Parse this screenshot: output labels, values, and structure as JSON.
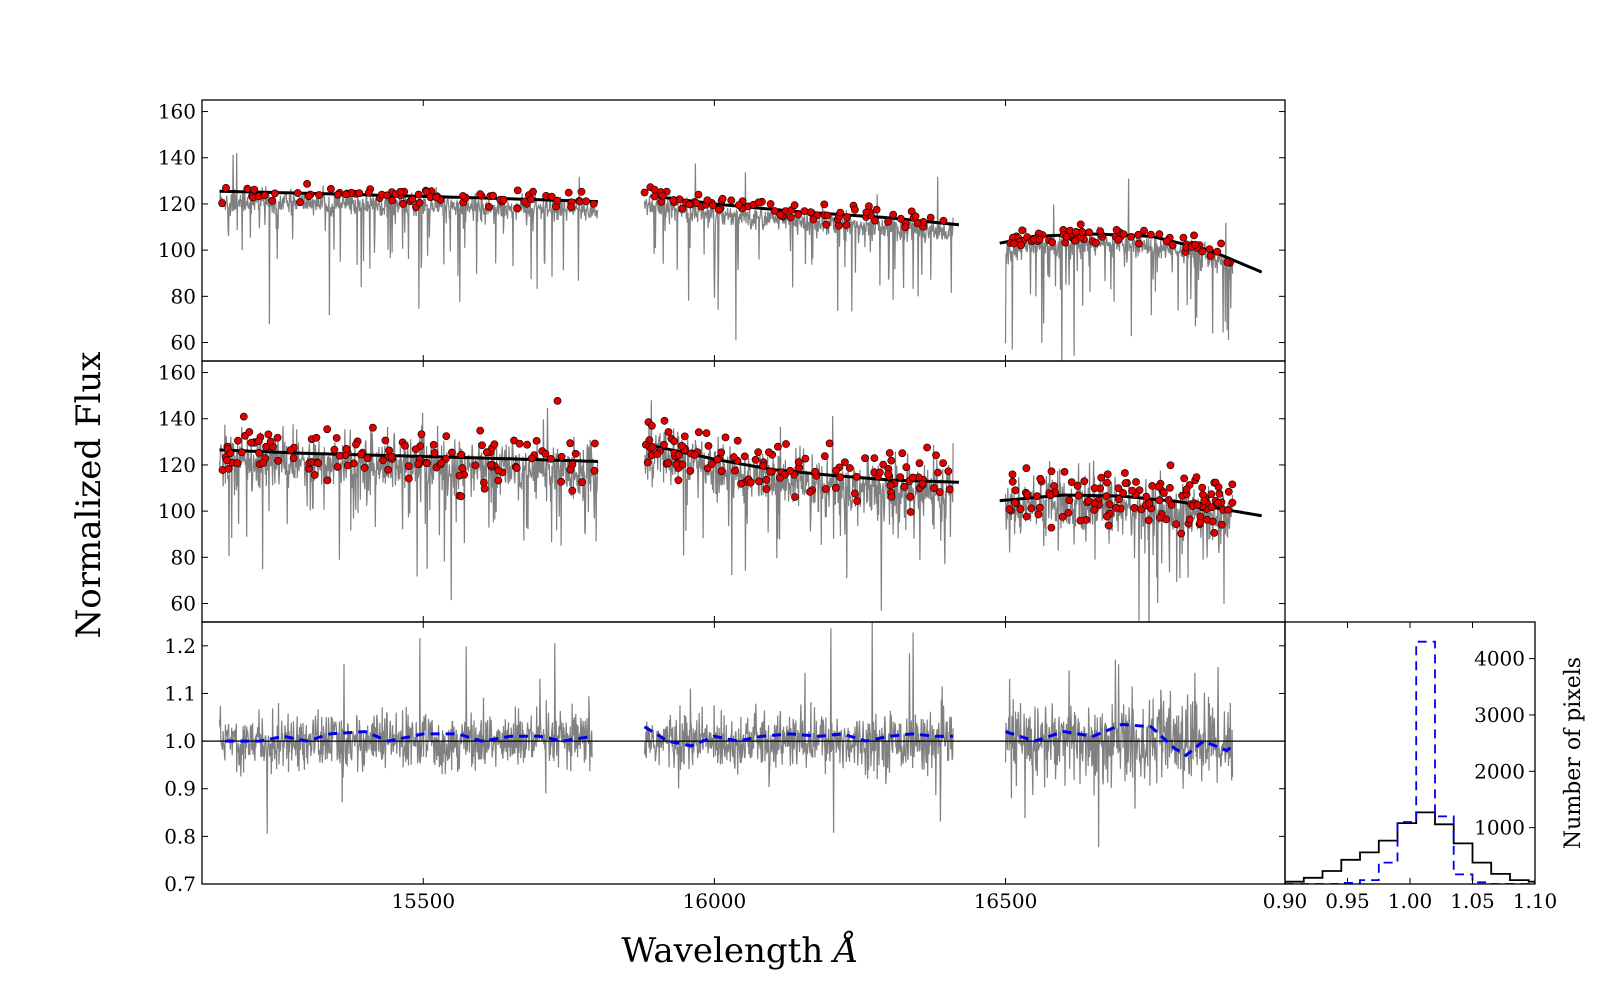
{
  "figure": {
    "xlabel": "Wavelength",
    "xlabel_symbol": "Å",
    "ylabel": "Normalized Flux",
    "hist_ylabel": "Number of pixels"
  },
  "chart_data": [
    {
      "type": "line",
      "panel": "top",
      "description": "Observed spectrum (gray) with selected continuum pixels (red points) and continuum fit (black)",
      "xlim": [
        15120,
        16980
      ],
      "ylim": [
        52,
        165
      ],
      "yticks": [
        60,
        80,
        100,
        120,
        140,
        160
      ],
      "ytick_labels": [
        "60",
        "80",
        "100",
        "120",
        "140",
        "160"
      ],
      "chips": [
        {
          "x_range": [
            15150,
            15800
          ],
          "spectrum_range": [
            15150,
            15800
          ],
          "continuum": [
            [
              15150,
              125.5
            ],
            [
              15300,
              124.6
            ],
            [
              15450,
              123.6
            ],
            [
              15600,
              122.6
            ],
            [
              15800,
              121.0
            ]
          ]
        },
        {
          "x_range": [
            15890,
            16420
          ],
          "spectrum_range": [
            15880,
            16410
          ],
          "continuum": [
            [
              15890,
              123.5
            ],
            [
              16000,
              120.0
            ],
            [
              16150,
              116.5
            ],
            [
              16300,
              114.0
            ],
            [
              16420,
              111.0
            ]
          ]
        },
        {
          "x_range": [
            16490,
            16940
          ],
          "spectrum_range": [
            16500,
            16890
          ],
          "continuum": [
            [
              16490,
              103.0
            ],
            [
              16550,
              106.0
            ],
            [
              16650,
              107.0
            ],
            [
              16750,
              106.0
            ],
            [
              16850,
              100.0
            ],
            [
              16940,
              90.5
            ]
          ]
        }
      ],
      "red_points_per_chip": [
        80,
        85,
        75
      ],
      "red_points_scatter": 2.0
    },
    {
      "type": "line",
      "panel": "middle",
      "description": "Noisier spectrum (gray) with selected continuum pixels (red points) and continuum fit (black)",
      "xlim": [
        15120,
        16980
      ],
      "ylim": [
        52,
        165
      ],
      "yticks": [
        60,
        80,
        100,
        120,
        140,
        160
      ],
      "ytick_labels": [
        "60",
        "80",
        "100",
        "120",
        "140",
        "160"
      ],
      "chips": [
        {
          "x_range": [
            15150,
            15800
          ],
          "spectrum_range": [
            15150,
            15800
          ],
          "continuum": [
            [
              15150,
              126.5
            ],
            [
              15300,
              125.0
            ],
            [
              15450,
              124.0
            ],
            [
              15600,
              123.0
            ],
            [
              15800,
              121.5
            ]
          ]
        },
        {
          "x_range": [
            15890,
            16420
          ],
          "spectrum_range": [
            15880,
            16410
          ],
          "continuum": [
            [
              15890,
              128.5
            ],
            [
              16000,
              122.5
            ],
            [
              16100,
              118.0
            ],
            [
              16200,
              115.5
            ],
            [
              16300,
              113.5
            ],
            [
              16420,
              112.5
            ]
          ]
        },
        {
          "x_range": [
            16490,
            16940
          ],
          "spectrum_range": [
            16500,
            16890
          ],
          "continuum": [
            [
              16490,
              104.5
            ],
            [
              16600,
              107.0
            ],
            [
              16700,
              106.5
            ],
            [
              16800,
              104.0
            ],
            [
              16940,
              98.0
            ]
          ]
        }
      ],
      "red_points_per_chip": [
        130,
        130,
        130
      ],
      "red_points_scatter": 6.0
    },
    {
      "type": "line",
      "panel": "bottom",
      "description": "Residual ratio spectra (gray) with smoothed ratio (blue dashed) and unity reference line (black)",
      "xlim": [
        15120,
        16980
      ],
      "ylim": [
        0.7,
        1.25
      ],
      "xticks": [
        15500,
        16000,
        16500
      ],
      "xtick_labels": [
        "15500",
        "16000",
        "16500"
      ],
      "yticks": [
        0.7,
        0.8,
        0.9,
        1.0,
        1.1,
        1.2
      ],
      "ytick_labels": [
        "0.7",
        "0.8",
        "0.9",
        "1.0",
        "1.1",
        "1.2"
      ],
      "reference_line": 1.0,
      "chips": [
        {
          "x_range": [
            15150,
            15790
          ],
          "blue_dashed": [
            [
              15160,
              1.0
            ],
            [
              15220,
              1.0
            ],
            [
              15260,
              1.01
            ],
            [
              15300,
              1.0
            ],
            [
              15340,
              1.015
            ],
            [
              15400,
              1.02
            ],
            [
              15440,
              1.0
            ],
            [
              15500,
              1.015
            ],
            [
              15560,
              1.015
            ],
            [
              15600,
              1.0
            ],
            [
              15650,
              1.01
            ],
            [
              15700,
              1.01
            ],
            [
              15740,
              1.0
            ],
            [
              15790,
              1.01
            ]
          ]
        },
        {
          "x_range": [
            15880,
            16410
          ],
          "blue_dashed": [
            [
              15880,
              1.03
            ],
            [
              15920,
              1.0
            ],
            [
              15960,
              0.99
            ],
            [
              16000,
              1.01
            ],
            [
              16040,
              1.0
            ],
            [
              16080,
              1.01
            ],
            [
              16130,
              1.015
            ],
            [
              16180,
              1.01
            ],
            [
              16220,
              1.015
            ],
            [
              16260,
              1.0
            ],
            [
              16300,
              1.01
            ],
            [
              16340,
              1.015
            ],
            [
              16380,
              1.01
            ],
            [
              16410,
              1.01
            ]
          ]
        },
        {
          "x_range": [
            16500,
            16890
          ],
          "blue_dashed": [
            [
              16500,
              1.02
            ],
            [
              16550,
              1.0
            ],
            [
              16600,
              1.02
            ],
            [
              16650,
              1.01
            ],
            [
              16700,
              1.035
            ],
            [
              16750,
              1.03
            ],
            [
              16790,
              0.985
            ],
            [
              16810,
              0.97
            ],
            [
              16840,
              1.0
            ],
            [
              16880,
              0.98
            ],
            [
              16890,
              0.99
            ]
          ]
        }
      ]
    },
    {
      "type": "bar",
      "panel": "histogram",
      "description": "Histograms of residual ratio values: broad (black solid) and narrow (blue dashed)",
      "xlim": [
        0.9,
        1.1
      ],
      "ylim": [
        0,
        4650
      ],
      "xticks": [
        0.9,
        0.95,
        1.0,
        1.05,
        1.1
      ],
      "xtick_labels": [
        "0.90",
        "0.95",
        "1.00",
        "1.05",
        "1.10"
      ],
      "yticks": [
        1000,
        2000,
        3000,
        4000
      ],
      "ytick_labels": [
        "1000",
        "2000",
        "3000",
        "4000"
      ],
      "bin_edges": [
        0.9,
        0.915,
        0.93,
        0.945,
        0.96,
        0.975,
        0.99,
        1.005,
        1.02,
        1.035,
        1.05,
        1.065,
        1.08,
        1.095,
        1.1
      ],
      "series": [
        {
          "name": "black solid",
          "color": "#000000",
          "values": [
            40,
            110,
            230,
            430,
            560,
            770,
            1080,
            1270,
            1060,
            720,
            380,
            180,
            70,
            40
          ]
        },
        {
          "name": "blue dashed",
          "color": "#0000ee",
          "values": [
            0,
            0,
            0,
            20,
            70,
            380,
            1100,
            4300,
            1200,
            170,
            30,
            0,
            0,
            0
          ]
        }
      ]
    }
  ]
}
